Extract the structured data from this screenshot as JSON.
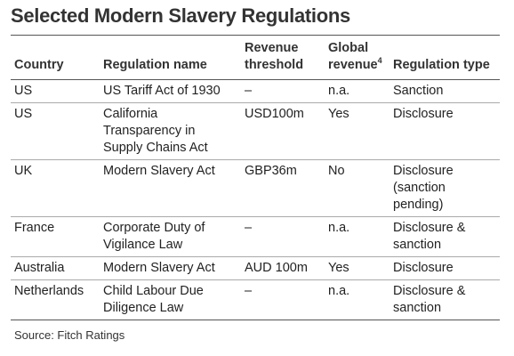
{
  "title": "Selected Modern Slavery Regulations",
  "columns": {
    "country": "Country",
    "regulation_name": "Regulation name",
    "revenue_threshold": "Revenue threshold",
    "global_revenue": "Global revenue",
    "global_revenue_footnote": "4",
    "regulation_type": "Regulation type"
  },
  "rows": [
    {
      "country": "US",
      "name": "US Tariff Act of 1930",
      "threshold": "–",
      "global": "n.a.",
      "type": "Sanction"
    },
    {
      "country": "US",
      "name": "California Transparency in Supply Chains Act",
      "threshold": "USD100m",
      "global": "Yes",
      "type": "Disclosure"
    },
    {
      "country": "UK",
      "name": "Modern Slavery Act",
      "threshold": "GBP36m",
      "global": "No",
      "type": "Disclosure (sanction pending)"
    },
    {
      "country": "France",
      "name": "Corporate Duty of Vigilance Law",
      "threshold": "–",
      "global": "n.a.",
      "type": "Disclosure & sanction"
    },
    {
      "country": "Australia",
      "name": "Modern Slavery Act",
      "threshold": "AUD 100m",
      "global": "Yes",
      "type": "Disclosure"
    },
    {
      "country": "Netherlands",
      "name": "Child Labour Due Diligence Law",
      "threshold": "–",
      "global": "n.a.",
      "type": "Disclosure & sanction"
    }
  ],
  "source": "Source: Fitch Ratings"
}
